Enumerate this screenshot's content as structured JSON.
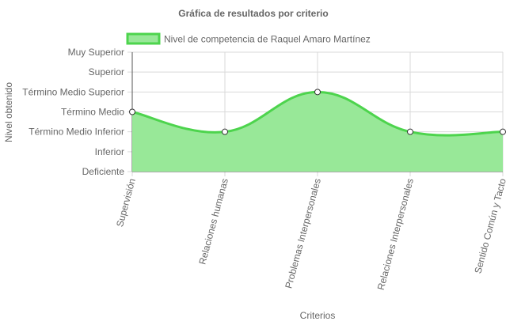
{
  "chart_data": {
    "type": "area",
    "title": "Gráfica de resultados por criterio",
    "xlabel": "Criterios",
    "ylabel": "Nivel obtenido",
    "categories": [
      "Supervisión",
      "Relaciones humanas",
      "Problemas Interpersonales",
      "Relaciones Interpersonales",
      "Sentido Común y Tacto"
    ],
    "y_levels": [
      "Deficiente",
      "Inferior",
      "Término Medio Inferior",
      "Término Medio",
      "Término Medio Superior",
      "Superior",
      "Muy Superior"
    ],
    "series": [
      {
        "name": "Nivel de competencia de Raquel Amaro Martínez",
        "values": [
          3,
          2,
          4,
          2,
          2
        ]
      }
    ],
    "ylim": [
      0,
      6
    ],
    "legend_position": "top",
    "grid": true,
    "colors": {
      "line": "#4dd44d",
      "fill": "#98e898",
      "point_fill": "#ffffff",
      "point_stroke": "#333333",
      "grid": "#d9d9d9",
      "axis": "#555555",
      "text": "#666666"
    }
  }
}
